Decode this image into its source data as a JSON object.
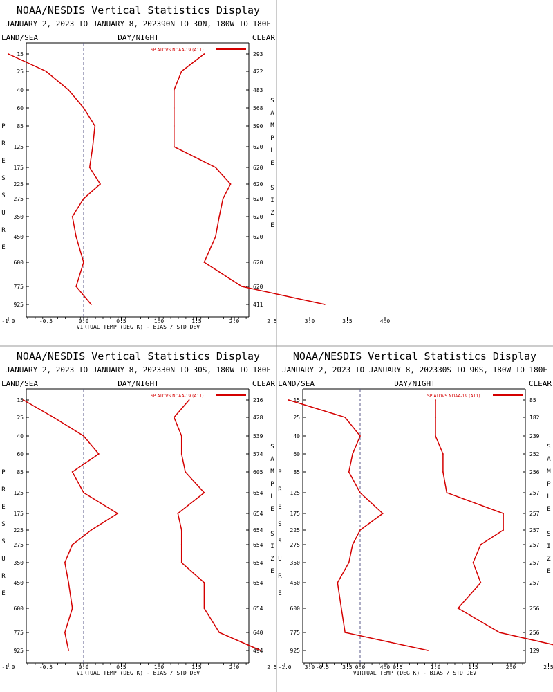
{
  "chart_data": [
    {
      "type": "line",
      "title": "NOAA/NESDIS Vertical Statistics Display",
      "subtitle": "JANUARY 2, 2023 TO JANUARY 8, 202390N TO 30N, 180W TO 180E",
      "header_left": "LAND/SEA",
      "header_center": "DAY/NIGHT",
      "header_right": "CLEAR",
      "ylabel": "PRESSURE",
      "right_label": "SAMPLE SIZE",
      "xlabel": "VIRTUAL TEMP (DEG K) - BIAS / STD DEV",
      "legend": "SP ATOVS NOAA-19 (A11)",
      "color": "#d40000",
      "xlim": [
        -1.5,
        4.5
      ],
      "xticks": [
        "-1.0",
        "-0.5",
        "0.0",
        "0.5",
        "1.0",
        "1.5",
        "2.0",
        "2.5",
        "3.0",
        "3.5",
        "4.0"
      ],
      "pressure_levels": [
        "15",
        "25",
        "40",
        "60",
        "85",
        "125",
        "175",
        "225",
        "275",
        "350",
        "450",
        "600",
        "775",
        "925"
      ],
      "sample_size": [
        "293",
        "422",
        "483",
        "568",
        "590",
        "620",
        "620",
        "620",
        "620",
        "620",
        "620",
        "620",
        "620",
        "411"
      ],
      "series": [
        {
          "values": [
            -1.0,
            -0.5,
            -0.2,
            0.0,
            0.15,
            0.12,
            0.08,
            0.22,
            0.0,
            -0.15,
            -0.1,
            0.0,
            -0.1,
            0.1
          ]
        },
        {
          "values": [
            1.6,
            1.3,
            1.2,
            1.2,
            1.2,
            1.2,
            1.75,
            1.95,
            1.85,
            1.8,
            1.75,
            1.6,
            2.1,
            3.2
          ]
        }
      ]
    },
    {
      "type": "line",
      "title": "NOAA/NESDIS Vertical Statistics Display",
      "subtitle": "JANUARY 2, 2023 TO JANUARY 8, 202330N TO 30S, 180W TO 180E",
      "header_left": "LAND/SEA",
      "header_center": "DAY/NIGHT",
      "header_right": "CLEAR",
      "ylabel": "PRESSURE",
      "right_label": "SAMPLE SIZE",
      "xlabel": "VIRTUAL TEMP (DEG K) - BIAS / STD DEV",
      "legend": "SP ATOVS NOAA-19 (A11)",
      "color": "#d40000",
      "xlim": [
        -1.5,
        4.5
      ],
      "xticks": [
        "-1.0",
        "-0.5",
        "0.0",
        "0.5",
        "1.0",
        "1.5",
        "2.0",
        "2.5",
        "3.0",
        "3.5",
        "4.0"
      ],
      "pressure_levels": [
        "15",
        "25",
        "40",
        "60",
        "85",
        "125",
        "175",
        "225",
        "275",
        "350",
        "450",
        "600",
        "775",
        "925"
      ],
      "sample_size": [
        "216",
        "428",
        "539",
        "574",
        "605",
        "654",
        "654",
        "654",
        "654",
        "654",
        "654",
        "654",
        "640",
        "494"
      ],
      "series": [
        {
          "values": [
            -0.8,
            -0.4,
            0.0,
            0.2,
            -0.15,
            0.0,
            0.45,
            0.1,
            -0.15,
            -0.25,
            -0.2,
            -0.15,
            -0.25,
            -0.2
          ]
        },
        {
          "values": [
            1.4,
            1.2,
            1.3,
            1.3,
            1.35,
            1.6,
            1.25,
            1.3,
            1.3,
            1.3,
            1.6,
            1.6,
            1.8,
            2.35
          ]
        }
      ]
    },
    {
      "type": "line",
      "title": "NOAA/NESDIS Vertical Statistics Display",
      "subtitle": "JANUARY 2, 2023 TO JANUARY 8, 202330S TO 90S, 180W TO 180E",
      "header_left": "LAND/SEA",
      "header_center": "DAY/NIGHT",
      "header_right": "CLEAR",
      "ylabel": "PRESSURE",
      "right_label": "SAMPLE SIZE",
      "xlabel": "VIRTUAL TEMP (DEG K) - BIAS / STD DEV",
      "legend": "SP ATOVS NOAA-19 (A11)",
      "color": "#d40000",
      "xlim": [
        -1.5,
        4.5
      ],
      "xticks": [
        "-1.0",
        "-0.5",
        "0.0",
        "0.5",
        "1.0",
        "1.5",
        "2.0",
        "2.5",
        "3.0",
        "3.5",
        "4.0"
      ],
      "pressure_levels": [
        "15",
        "25",
        "40",
        "60",
        "85",
        "125",
        "175",
        "225",
        "275",
        "350",
        "450",
        "600",
        "775",
        "925"
      ],
      "sample_size": [
        "85",
        "182",
        "239",
        "252",
        "256",
        "257",
        "257",
        "257",
        "257",
        "257",
        "257",
        "256",
        "256",
        "129"
      ],
      "series": [
        {
          "values": [
            -0.95,
            -0.2,
            0.0,
            -0.1,
            -0.15,
            0.0,
            0.3,
            0.0,
            -0.1,
            -0.15,
            -0.3,
            -0.25,
            -0.2,
            0.9
          ]
        },
        {
          "values": [
            1.0,
            1.0,
            1.0,
            1.1,
            1.1,
            1.15,
            1.9,
            1.9,
            1.6,
            1.5,
            1.6,
            1.3,
            1.85,
            2.9
          ]
        }
      ]
    }
  ]
}
